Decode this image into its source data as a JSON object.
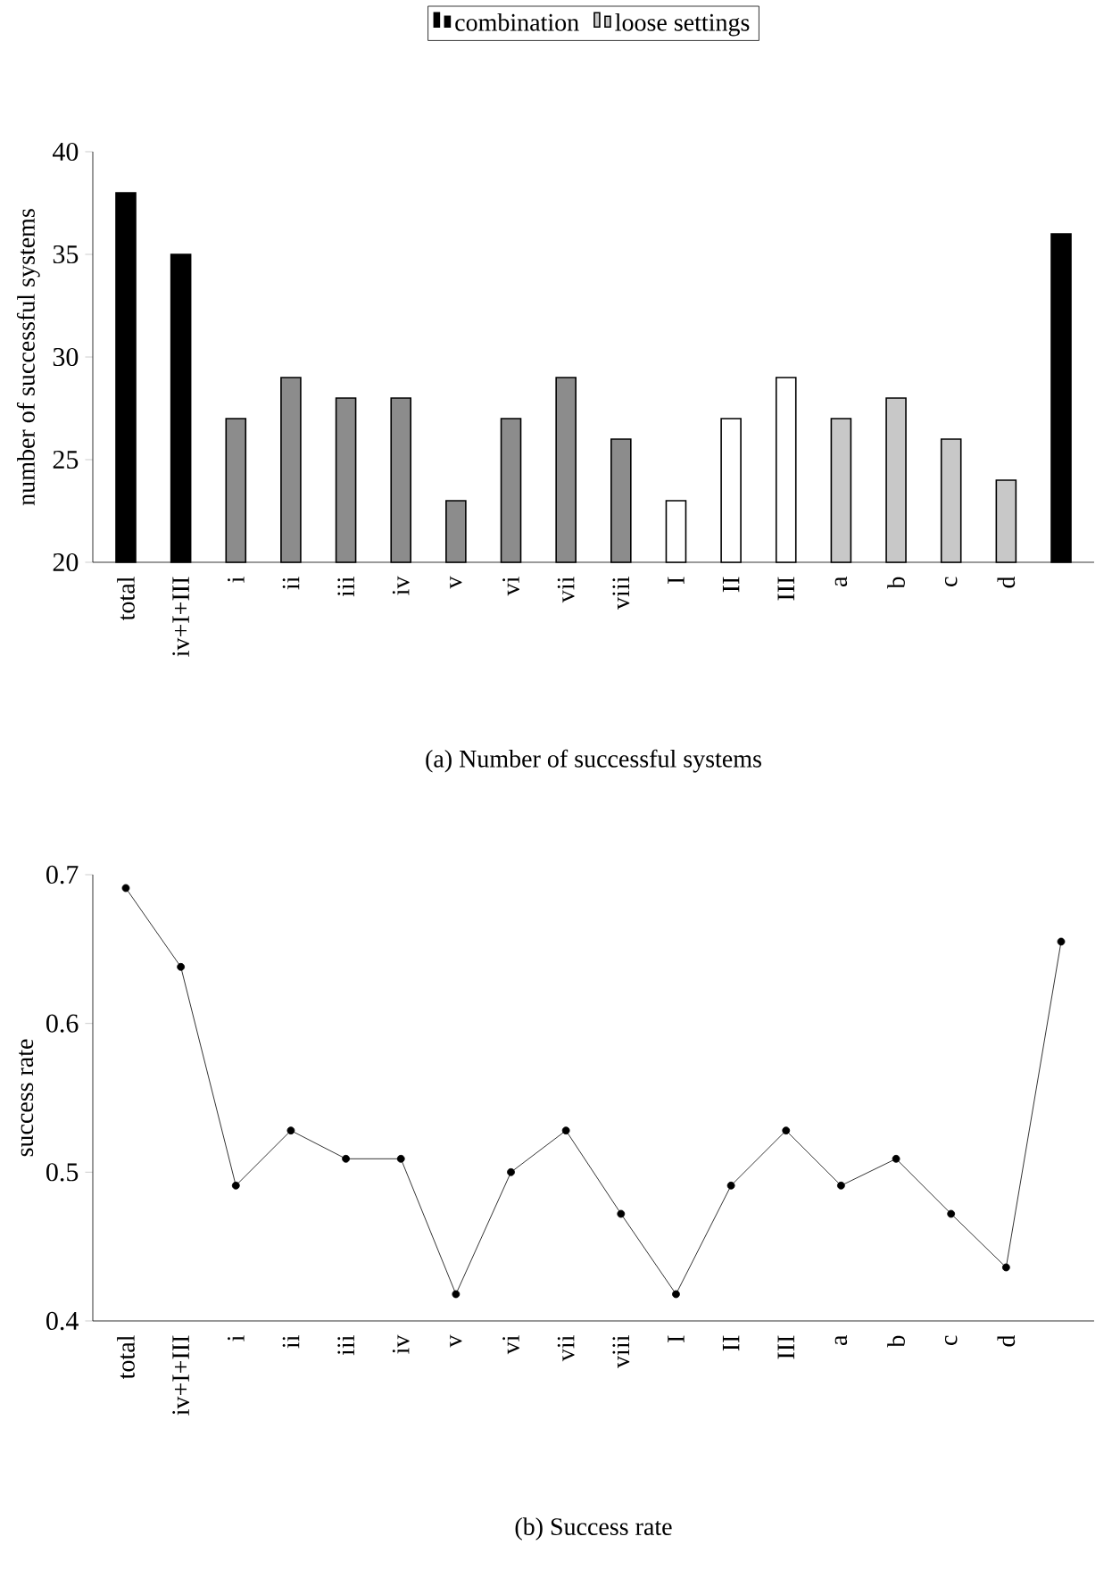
{
  "chart_data": [
    {
      "type": "bar",
      "title": "(a) Number of successful systems",
      "ylabel": "number of successful systems",
      "categories": [
        "total",
        "iv+I+III",
        "i",
        "ii",
        "iii",
        "iv",
        "v",
        "vi",
        "vii",
        "viii",
        "I",
        "II",
        "III",
        "a",
        "b",
        "c",
        "d",
        null
      ],
      "series": [
        {
          "name": "combination",
          "color": "#000000",
          "values": [
            38,
            35,
            null,
            null,
            null,
            null,
            null,
            null,
            null,
            null,
            null,
            null,
            null,
            null,
            null,
            null,
            null,
            null
          ]
        },
        {
          "color": "#8c8c8c",
          "values": [
            null,
            null,
            27,
            29,
            28,
            28,
            23,
            27,
            29,
            26,
            null,
            null,
            null,
            null,
            null,
            null,
            null,
            null
          ]
        },
        {
          "color": "#ffffff",
          "values": [
            null,
            null,
            null,
            null,
            null,
            null,
            null,
            null,
            null,
            null,
            23,
            27,
            29,
            null,
            null,
            null,
            null,
            null
          ]
        },
        {
          "name": "loose settings",
          "color": "#c8c8c8",
          "values": [
            null,
            null,
            null,
            null,
            null,
            null,
            null,
            null,
            null,
            null,
            null,
            null,
            null,
            27,
            28,
            26,
            24,
            null
          ]
        },
        {
          "color": "#000000",
          "values": [
            null,
            null,
            null,
            null,
            null,
            null,
            null,
            null,
            null,
            null,
            null,
            null,
            null,
            null,
            null,
            null,
            null,
            36
          ]
        }
      ],
      "ylim": [
        20,
        40
      ],
      "yticks": [
        20,
        25,
        30,
        35,
        40
      ],
      "legend": "top"
    },
    {
      "type": "line",
      "title": "(b) Success rate",
      "ylabel": "success rate",
      "categories": [
        "total",
        "iv+I+III",
        "i",
        "ii",
        "iii",
        "iv",
        "v",
        "vi",
        "vii",
        "viii",
        "I",
        "II",
        "III",
        "a",
        "b",
        "c",
        "d",
        null
      ],
      "series": [
        {
          "color": "#000000",
          "values": [
            0.691,
            0.638,
            0.491,
            0.528,
            0.509,
            0.509,
            0.418,
            0.5,
            0.528,
            0.472,
            0.418,
            0.491,
            0.528,
            0.491,
            0.509,
            0.472,
            0.436,
            0.655
          ]
        }
      ],
      "ylim": [
        0.4,
        0.7
      ],
      "yticks": [
        0.4,
        0.5,
        0.6,
        0.7
      ],
      "marker": "circle"
    }
  ]
}
